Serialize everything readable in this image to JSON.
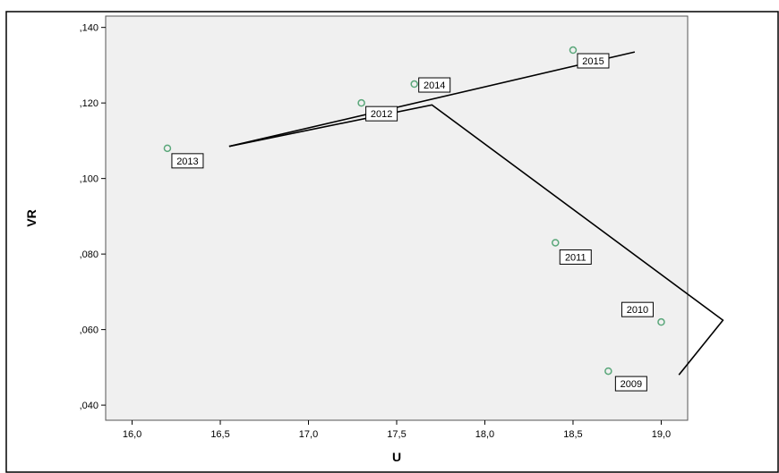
{
  "chart_data": {
    "type": "scatter",
    "title": "",
    "xlabel": "U",
    "ylabel": "VR",
    "xlim": [
      15.85,
      19.15
    ],
    "ylim": [
      0.036,
      0.143
    ],
    "x_ticks": [
      16.0,
      16.5,
      17.0,
      17.5,
      18.0,
      18.5,
      19.0
    ],
    "x_tick_labels": [
      "16,0",
      "16,5",
      "17,0",
      "17,5",
      "18,0",
      "18,5",
      "19,0"
    ],
    "y_ticks": [
      0.04,
      0.06,
      0.08,
      0.1,
      0.12,
      0.14
    ],
    "y_tick_labels": [
      ",040",
      ",060",
      ",080",
      ",100",
      ",120",
      ",140"
    ],
    "grid": false,
    "background_color": "#f0f0f0",
    "marker_color": "#5aa77a",
    "points": [
      {
        "label": "2009",
        "x": 18.7,
        "y": 0.049
      },
      {
        "label": "2010",
        "x": 19.0,
        "y": 0.062
      },
      {
        "label": "2011",
        "x": 18.4,
        "y": 0.083
      },
      {
        "label": "2012",
        "x": 17.3,
        "y": 0.12
      },
      {
        "label": "2013",
        "x": 16.2,
        "y": 0.108
      },
      {
        "label": "2014",
        "x": 17.6,
        "y": 0.125
      },
      {
        "label": "2015",
        "x": 18.5,
        "y": 0.134
      }
    ],
    "annotation_lines": [
      {
        "x": [
          16.55,
          18.85
        ],
        "y": [
          0.1085,
          0.1335
        ]
      },
      {
        "x": [
          16.55,
          17.7,
          19.35,
          19.1
        ],
        "y": [
          0.1085,
          0.1195,
          0.0625,
          0.048
        ]
      }
    ]
  }
}
